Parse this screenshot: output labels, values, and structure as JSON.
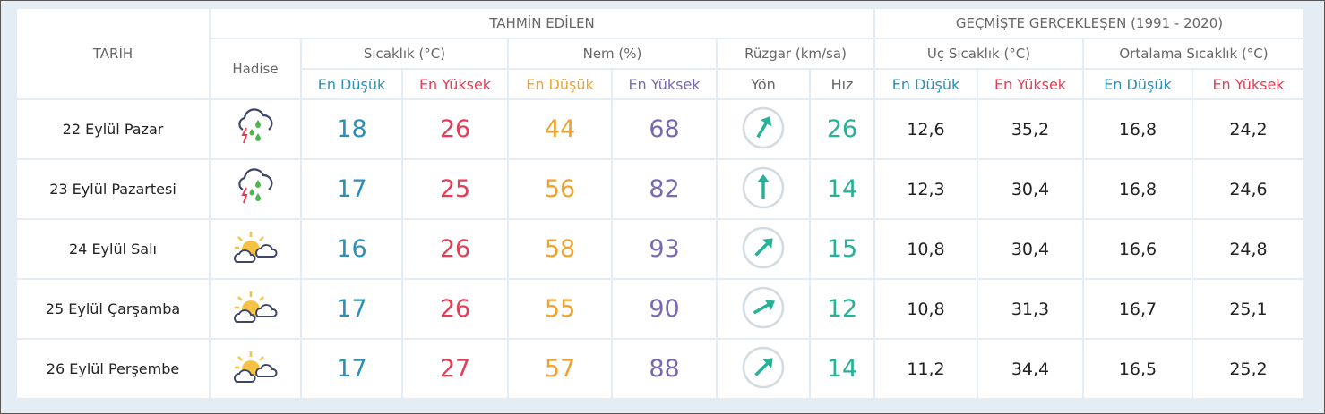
{
  "colors": {
    "min": "#2c8fb8",
    "max": "#e43d57",
    "hum_min": "#f0a22e",
    "hum_max": "#7a68b0",
    "wind": "#27b197"
  },
  "header": {
    "date": "TARİH",
    "forecast": "TAHMİN EDİLEN",
    "history": "GEÇMİŞTE GERÇEKLEŞEN (1991 - 2020)",
    "event": "Hadise",
    "temp": "Sıcaklık (°C)",
    "humidity": "Nem (%)",
    "wind": "Rüzgar (km/sa)",
    "extreme": "Uç Sıcaklık (°C)",
    "average": "Ortalama Sıcaklık (°C)",
    "min": "En Düşük",
    "max": "En Yüksek",
    "dir": "Yön",
    "speed": "Hız"
  },
  "rows": [
    {
      "date": "22 Eylül Pazar",
      "icon": "thunderstorm-rain-icon",
      "tmin": "18",
      "tmax": "26",
      "hmin": "44",
      "hmax": "68",
      "wind_dir_deg": 210,
      "speed": "26",
      "xmin": "12,6",
      "xmax": "35,2",
      "amin": "16,8",
      "amax": "24,2"
    },
    {
      "date": "23 Eylül Pazartesi",
      "icon": "thunderstorm-rain-icon",
      "tmin": "17",
      "tmax": "25",
      "hmin": "56",
      "hmax": "82",
      "wind_dir_deg": 180,
      "speed": "14",
      "xmin": "12,3",
      "xmax": "30,4",
      "amin": "16,8",
      "amax": "24,6"
    },
    {
      "date": "24 Eylül Salı",
      "icon": "partly-cloudy-icon",
      "tmin": "16",
      "tmax": "26",
      "hmin": "58",
      "hmax": "93",
      "wind_dir_deg": 225,
      "speed": "15",
      "xmin": "10,8",
      "xmax": "30,4",
      "amin": "16,6",
      "amax": "24,8"
    },
    {
      "date": "25 Eylül Çarşamba",
      "icon": "partly-cloudy-icon",
      "tmin": "17",
      "tmax": "26",
      "hmin": "55",
      "hmax": "90",
      "wind_dir_deg": 240,
      "speed": "12",
      "xmin": "10,8",
      "xmax": "31,3",
      "amin": "16,7",
      "amax": "25,1"
    },
    {
      "date": "26 Eylül Perşembe",
      "icon": "partly-cloudy-icon",
      "tmin": "17",
      "tmax": "27",
      "hmin": "57",
      "hmax": "88",
      "wind_dir_deg": 225,
      "speed": "14",
      "xmin": "11,2",
      "xmax": "34,4",
      "amin": "16,5",
      "amax": "25,2"
    }
  ]
}
